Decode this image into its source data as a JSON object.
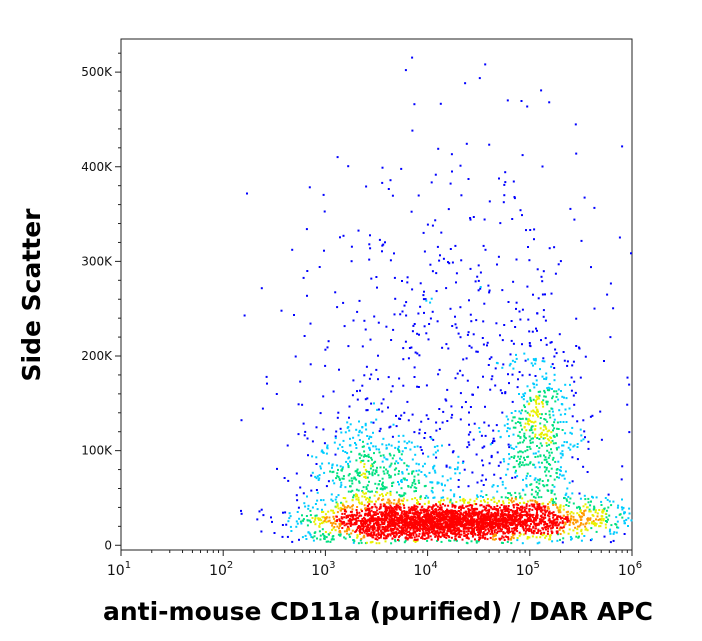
{
  "chart_data": {
    "type": "scatter",
    "subtype": "flow-cytometry density dot plot",
    "xlabel": "anti-mouse CD11a (purified) / DAR APC",
    "ylabel": "Side Scatter",
    "x_scale": "log",
    "xlim": [
      10,
      1000000
    ],
    "ylim": [
      -5000,
      535000
    ],
    "x_ticks": [
      {
        "value": 10,
        "base": "10",
        "exp": "1"
      },
      {
        "value": 100,
        "base": "10",
        "exp": "2"
      },
      {
        "value": 1000,
        "base": "10",
        "exp": "3"
      },
      {
        "value": 10000,
        "base": "10",
        "exp": "4"
      },
      {
        "value": 100000,
        "base": "10",
        "exp": "5"
      },
      {
        "value": 1000000,
        "base": "10",
        "exp": "6"
      }
    ],
    "y_ticks": [
      {
        "value": 0,
        "label": "0"
      },
      {
        "value": 100000,
        "label": "100K"
      },
      {
        "value": 200000,
        "label": "200K"
      },
      {
        "value": 300000,
        "label": "300K"
      },
      {
        "value": 400000,
        "label": "400K"
      },
      {
        "value": 500000,
        "label": "500K"
      }
    ],
    "density_colors": [
      "#0000ff",
      "#00ccff",
      "#00e080",
      "#e8f000",
      "#ff9900",
      "#ff0000"
    ],
    "populations": [
      {
        "x_center": 15000,
        "x_spread_decades": 0.6,
        "y_center": 25000,
        "y_spread": 9000,
        "points": 2600
      },
      {
        "x_center": 3000,
        "x_spread_decades": 0.35,
        "y_center": 60000,
        "y_spread": 40000,
        "points": 700
      },
      {
        "x_center": 120000,
        "x_spread_decades": 0.2,
        "y_center": 110000,
        "y_spread": 45000,
        "points": 500
      },
      {
        "x_center": 20000,
        "x_spread_decades": 0.8,
        "y_center": 180000,
        "y_spread": 120000,
        "points": 650
      },
      {
        "x_center": 150000,
        "x_spread_decades": 0.6,
        "y_center": 30000,
        "y_spread": 12000,
        "points": 450
      }
    ],
    "grid": false,
    "legend": "none"
  }
}
